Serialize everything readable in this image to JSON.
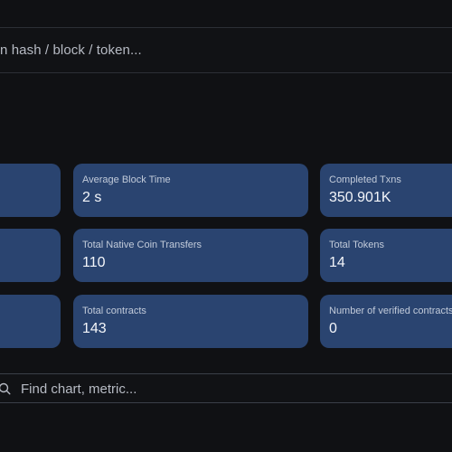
{
  "search": {
    "placeholder": "n hash / block / token..."
  },
  "stats": {
    "cards": [
      {
        "label": "Average Block Time",
        "value": "2 s"
      },
      {
        "label": "Completed Txns",
        "value": "350.901K"
      },
      {
        "label": "Total Native Coin Transfers",
        "value": "110"
      },
      {
        "label": "Total Tokens",
        "value": "14"
      },
      {
        "label": "Total contracts",
        "value": "143"
      },
      {
        "label": "Number of verified contracts",
        "value": "0"
      }
    ]
  },
  "charts_search": {
    "placeholder": "Find chart, metric...",
    "icon": "search-icon"
  },
  "colors": {
    "background": "#101114",
    "card": "#2a4470"
  }
}
